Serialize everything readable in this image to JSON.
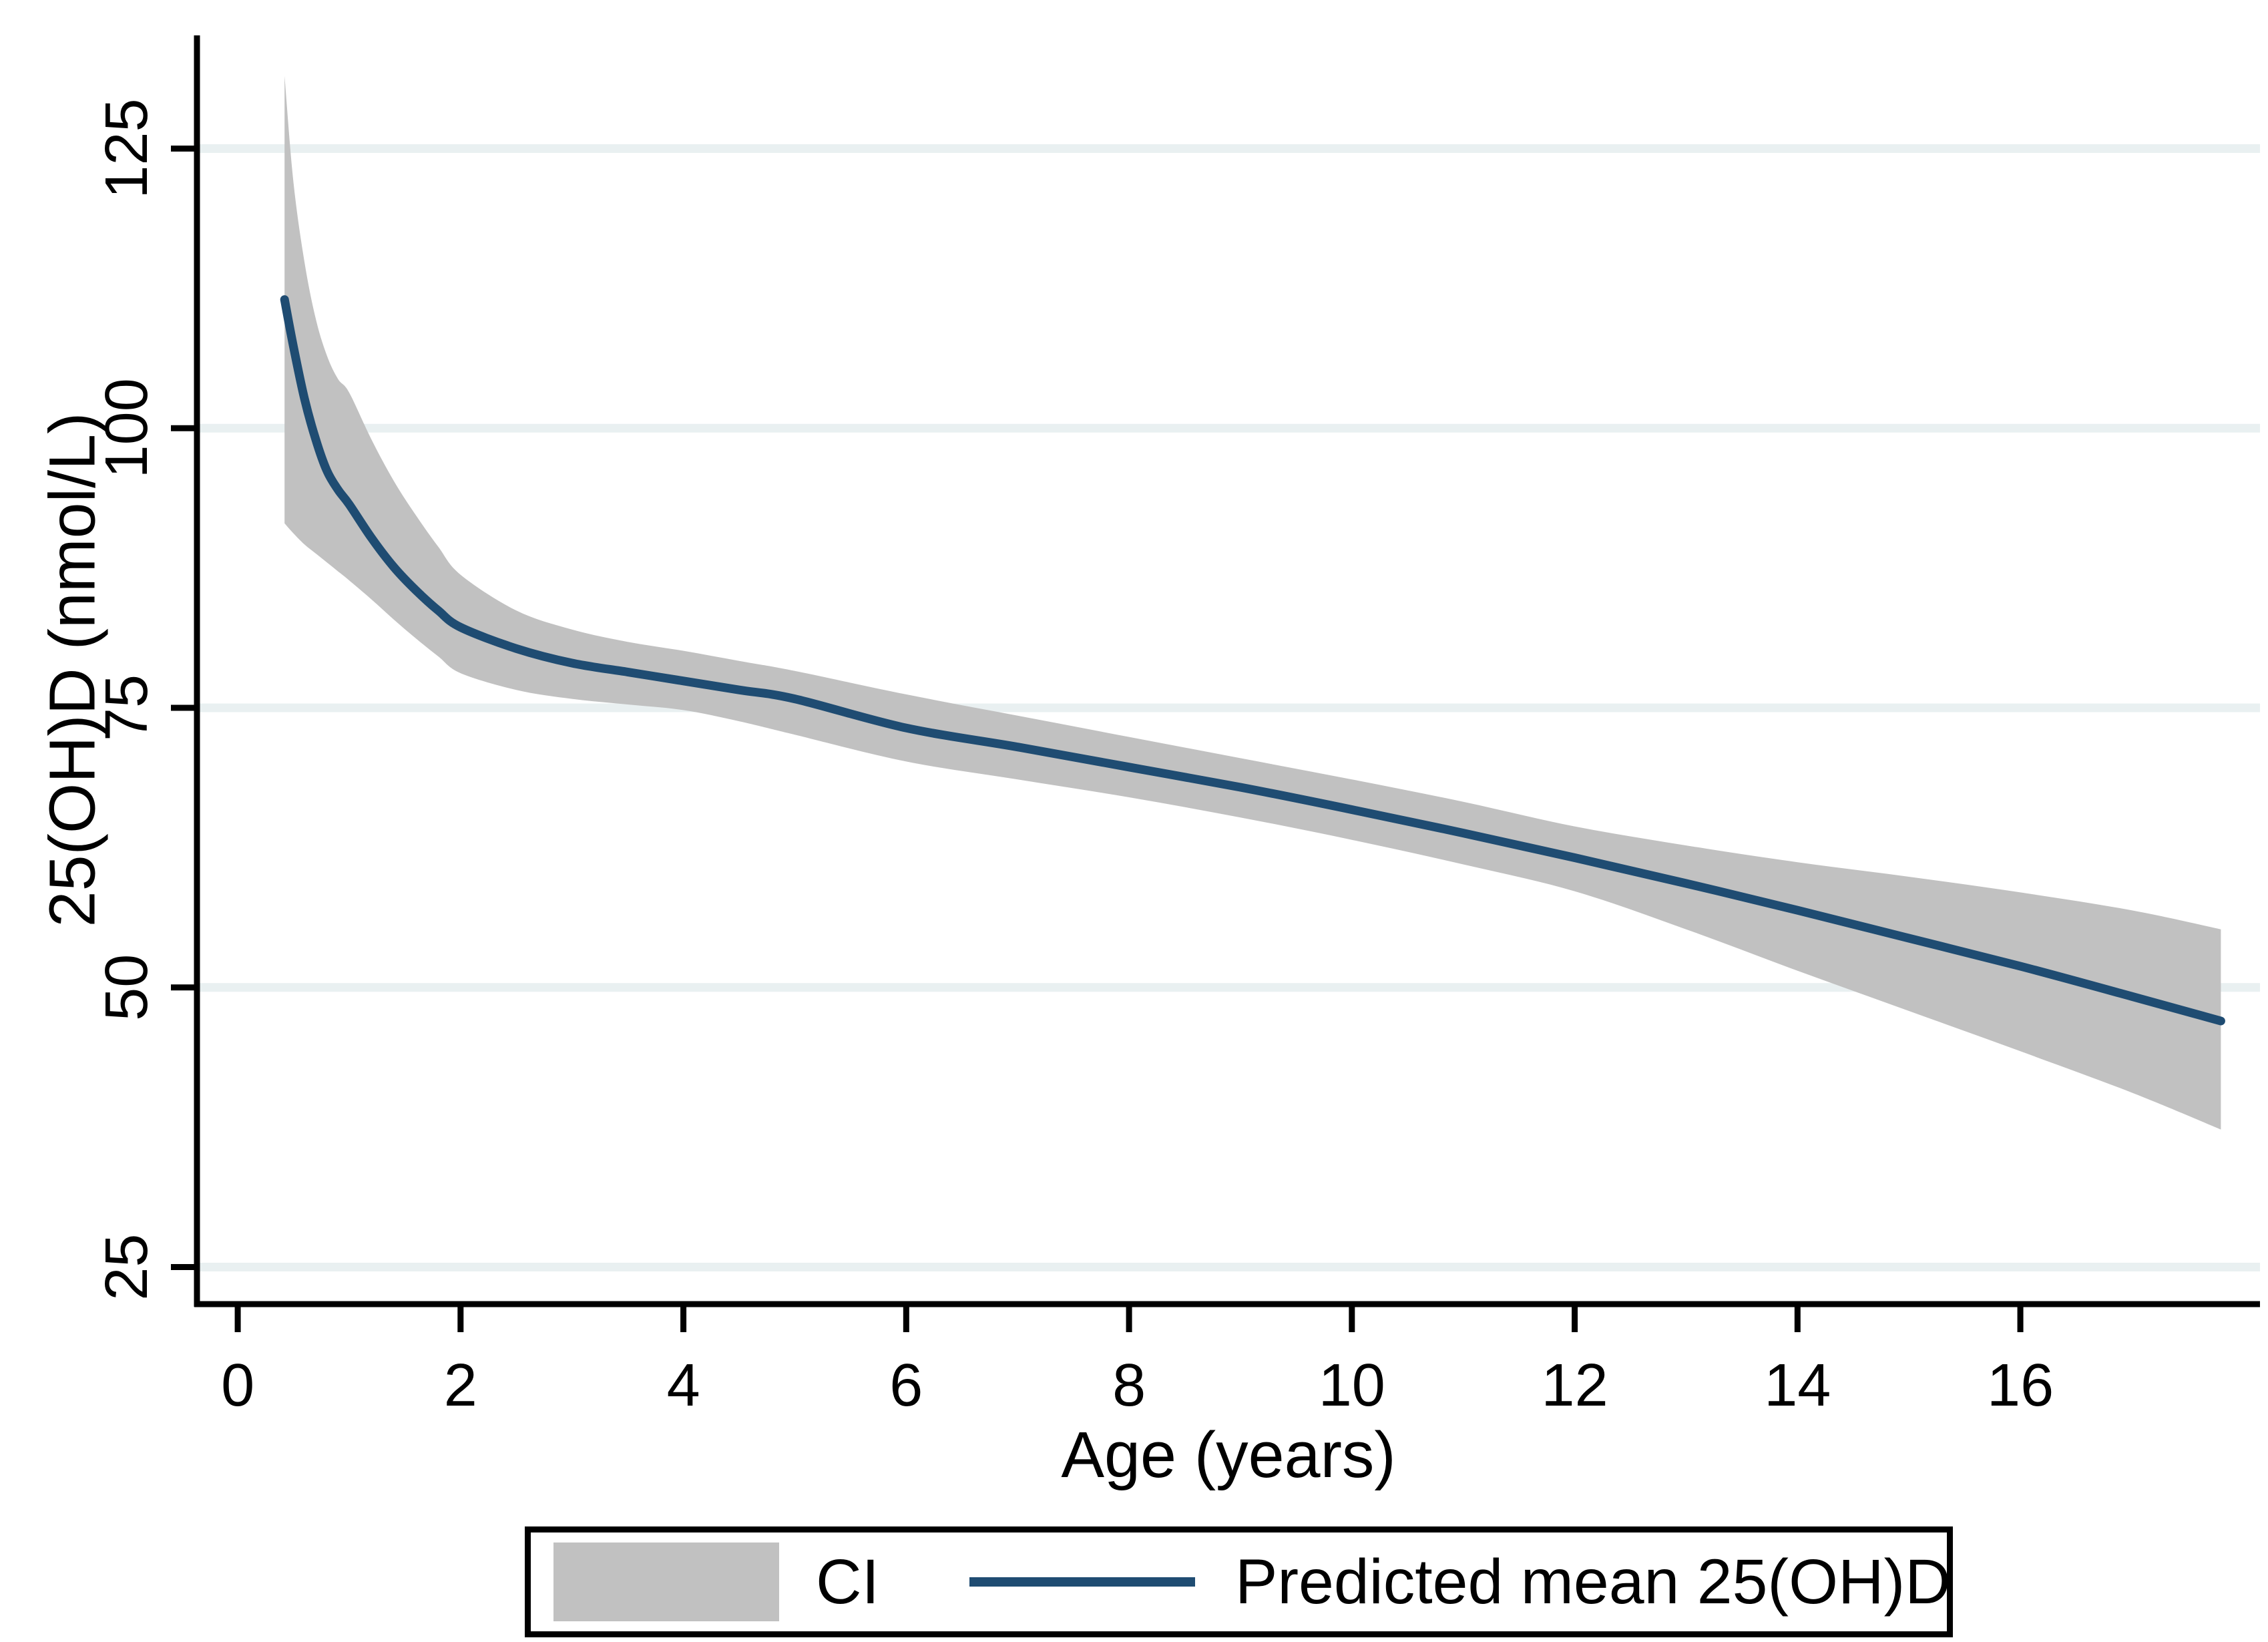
{
  "chart_data": {
    "type": "area",
    "title": "",
    "xlabel": "Age (years)",
    "ylabel": "25(OH)D (nmol/L)",
    "x_ticks": [
      0,
      2,
      4,
      6,
      8,
      10,
      12,
      14,
      16
    ],
    "y_ticks": [
      25,
      50,
      75,
      100,
      125
    ],
    "xlim": [
      -0.366,
      18.151
    ],
    "ylim": [
      21.69,
      135.12
    ],
    "grid": "horizontal-only",
    "legend_position": "bottom-outside",
    "legend": {
      "ci_label": "CI",
      "line_label": "Predicted mean 25(OH)D"
    },
    "colors": {
      "band": "#c1c1c1",
      "line": "#1f4c72",
      "grid": "#e9f0f1",
      "axis": "#000000",
      "background": "#ffffff"
    },
    "series": [
      {
        "name": "Predicted mean 25(OH)D",
        "type": "line",
        "x": [
          0.42,
          0.5,
          0.6,
          0.7,
          0.8,
          0.9,
          1.0,
          1.2,
          1.4,
          1.6,
          1.8,
          2.0,
          2.5,
          3.0,
          3.5,
          4.0,
          4.5,
          5.0,
          6.0,
          7.0,
          8.0,
          9.0,
          10,
          11,
          12,
          13,
          14,
          15,
          16,
          17,
          17.8
        ],
        "y": [
          111.5,
          107.3,
          102.6,
          99.0,
          96.2,
          94.5,
          93.2,
          90.2,
          87.6,
          85.5,
          83.7,
          82.2,
          80.3,
          79.0,
          78.2,
          77.4,
          76.6,
          75.8,
          73.2,
          71.5,
          69.7,
          67.9,
          65.9,
          63.8,
          61.6,
          59.3,
          56.9,
          54.4,
          51.9,
          49.2,
          47.0
        ]
      },
      {
        "name": "CI",
        "type": "band",
        "x": [
          0.42,
          0.5,
          0.6,
          0.7,
          0.8,
          0.9,
          1.0,
          1.2,
          1.4,
          1.6,
          1.8,
          2.0,
          2.5,
          3.0,
          3.5,
          4.0,
          4.5,
          5.0,
          6.0,
          7.0,
          8.0,
          9.0,
          10,
          11,
          12,
          13,
          14,
          15,
          16,
          17,
          17.8
        ],
        "lo": [
          91.5,
          90.6,
          89.6,
          88.8,
          88.0,
          87.2,
          86.4,
          84.7,
          82.9,
          81.2,
          79.6,
          78.1,
          76.6,
          75.8,
          75.3,
          74.8,
          73.8,
          72.6,
          70.2,
          68.6,
          67.0,
          65.2,
          63.2,
          61.0,
          58.6,
          55.2,
          51.5,
          47.9,
          44.3,
          40.6,
          37.3
        ],
        "hi": [
          131.5,
          122.0,
          114.8,
          109.8,
          106.5,
          104.4,
          103.2,
          99.0,
          95.3,
          92.2,
          89.4,
          86.9,
          83.7,
          82.0,
          80.9,
          80.1,
          79.2,
          78.3,
          76.2,
          74.3,
          72.4,
          70.5,
          68.6,
          66.6,
          64.4,
          62.7,
          61.2,
          59.9,
          58.5,
          56.9,
          55.2
        ]
      }
    ]
  }
}
